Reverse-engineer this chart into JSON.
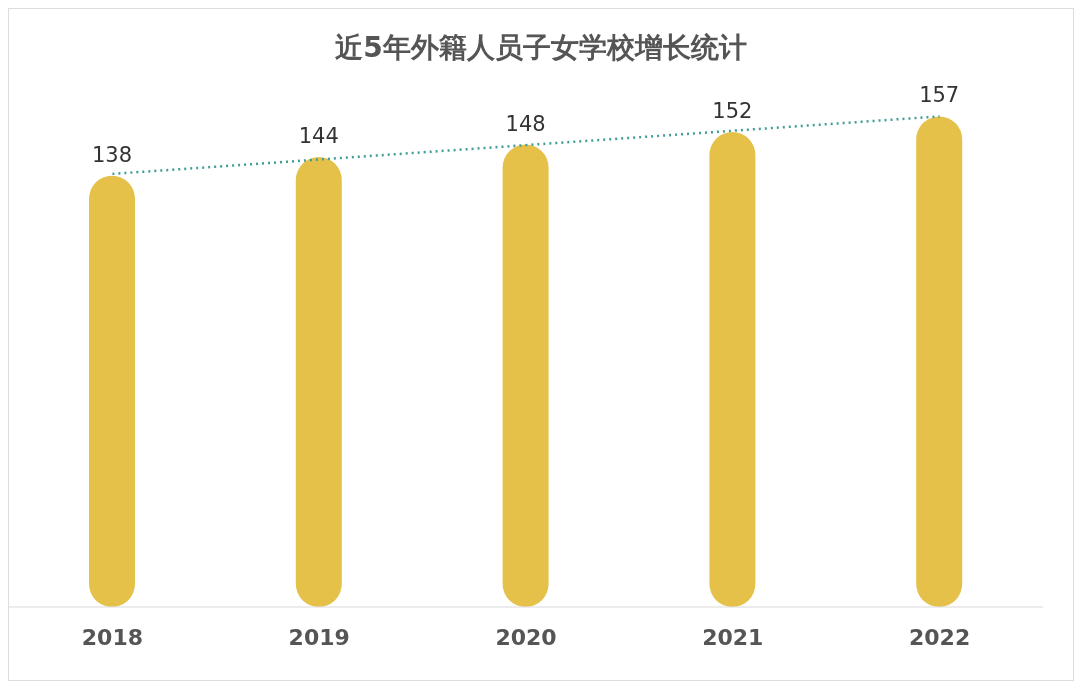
{
  "chart_data": {
    "type": "bar",
    "title": "近5年外籍人员子女学校增长统计",
    "categories": [
      "2018",
      "2019",
      "2020",
      "2021",
      "2022"
    ],
    "series": [
      {
        "color": "#e5c14a",
        "values": [
          138,
          144,
          148,
          152,
          157
        ],
        "value_labels": [
          "138",
          "144",
          "148",
          "152",
          "157"
        ]
      },
      {
        "type": "line",
        "color": "#3f9e96",
        "values": [
          138.6,
          143.2,
          147.8,
          152.4,
          157
        ],
        "line_style": "dotted",
        "marker": "none"
      }
    ],
    "tick_labels": "x"
  }
}
